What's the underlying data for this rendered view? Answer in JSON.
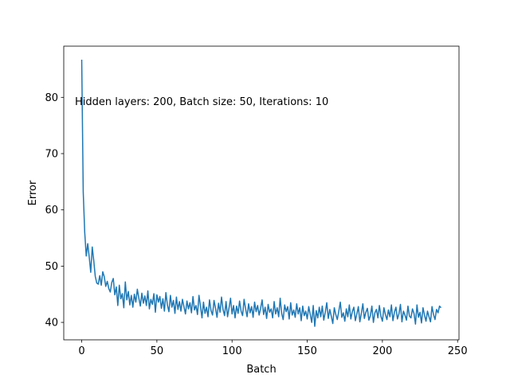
{
  "chart_data": {
    "type": "line",
    "xlabel": "Batch",
    "ylabel": "Error",
    "annotation": "Hidden layers: 200, Batch size: 50, Iterations: 10",
    "xlim": [
      -11.95,
      250.95
    ],
    "xticks": [
      0,
      50,
      100,
      150,
      200,
      250
    ],
    "ylim": [
      36.9,
      89.1
    ],
    "yticks": [
      40,
      50,
      60,
      70,
      80
    ],
    "x": [
      0,
      1,
      2,
      3,
      4,
      5,
      6,
      7,
      8,
      9,
      10,
      11,
      12,
      13,
      14,
      15,
      16,
      17,
      18,
      19,
      20,
      21,
      22,
      23,
      24,
      25,
      26,
      27,
      28,
      29,
      30,
      31,
      32,
      33,
      34,
      35,
      36,
      37,
      38,
      39,
      40,
      41,
      42,
      43,
      44,
      45,
      46,
      47,
      48,
      49,
      50,
      51,
      52,
      53,
      54,
      55,
      56,
      57,
      58,
      59,
      60,
      61,
      62,
      63,
      64,
      65,
      66,
      67,
      68,
      69,
      70,
      71,
      72,
      73,
      74,
      75,
      76,
      77,
      78,
      79,
      80,
      81,
      82,
      83,
      84,
      85,
      86,
      87,
      88,
      89,
      90,
      91,
      92,
      93,
      94,
      95,
      96,
      97,
      98,
      99,
      100,
      101,
      102,
      103,
      104,
      105,
      106,
      107,
      108,
      109,
      110,
      111,
      112,
      113,
      114,
      115,
      116,
      117,
      118,
      119,
      120,
      121,
      122,
      123,
      124,
      125,
      126,
      127,
      128,
      129,
      130,
      131,
      132,
      133,
      134,
      135,
      136,
      137,
      138,
      139,
      140,
      141,
      142,
      143,
      144,
      145,
      146,
      147,
      148,
      149,
      150,
      151,
      152,
      153,
      154,
      155,
      156,
      157,
      158,
      159,
      160,
      161,
      162,
      163,
      164,
      165,
      166,
      167,
      168,
      169,
      170,
      171,
      172,
      173,
      174,
      175,
      176,
      177,
      178,
      179,
      180,
      181,
      182,
      183,
      184,
      185,
      186,
      187,
      188,
      189,
      190,
      191,
      192,
      193,
      194,
      195,
      196,
      197,
      198,
      199,
      200,
      201,
      202,
      203,
      204,
      205,
      206,
      207,
      208,
      209,
      210,
      211,
      212,
      213,
      214,
      215,
      216,
      217,
      218,
      219,
      220,
      221,
      222,
      223,
      224,
      225,
      226,
      227,
      228,
      229,
      230,
      231,
      232,
      233,
      234,
      235,
      236,
      237,
      238,
      239
    ],
    "series": [
      {
        "color": "#1f77b4",
        "values": [
          86.7,
          63.2,
          56.0,
          51.8,
          54.0,
          51.6,
          48.9,
          53.4,
          51.0,
          48.2,
          47.0,
          46.8,
          48.3,
          46.6,
          49.0,
          48.1,
          46.4,
          47.3,
          46.0,
          45.4,
          47.1,
          47.8,
          44.9,
          46.3,
          43.0,
          46.6,
          44.2,
          45.1,
          42.6,
          47.2,
          44.0,
          45.5,
          43.1,
          44.8,
          42.7,
          45.0,
          43.6,
          45.9,
          44.3,
          42.9,
          45.2,
          43.4,
          44.7,
          43.0,
          45.6,
          42.4,
          44.1,
          43.2,
          45.1,
          41.8,
          44.9,
          43.6,
          44.6,
          42.5,
          44.2,
          42.0,
          45.3,
          43.1,
          41.9,
          44.8,
          42.7,
          43.9,
          41.6,
          44.5,
          42.3,
          43.7,
          42.0,
          44.1,
          42.8,
          41.5,
          43.8,
          42.4,
          43.5,
          41.7,
          44.6,
          42.2,
          43.0,
          41.4,
          44.8,
          42.9,
          40.8,
          43.6,
          41.6,
          42.7,
          41.0,
          44.0,
          42.1,
          41.3,
          43.9,
          42.5,
          40.9,
          43.4,
          41.8,
          44.5,
          42.3,
          41.2,
          43.7,
          41.0,
          42.6,
          44.3,
          41.5,
          43.0,
          40.8,
          42.9,
          41.6,
          43.8,
          42.0,
          41.2,
          44.1,
          42.4,
          41.0,
          43.3,
          41.7,
          42.8,
          40.9,
          43.6,
          41.9,
          43.0,
          41.3,
          42.5,
          44.0,
          41.4,
          42.7,
          40.7,
          43.2,
          41.8,
          42.4,
          40.8,
          43.7,
          41.5,
          42.6,
          41.0,
          44.3,
          41.6,
          40.5,
          43.1,
          41.9,
          42.8,
          40.6,
          43.5,
          41.3,
          42.2,
          40.9,
          43.3,
          41.5,
          42.6,
          40.3,
          42.9,
          41.2,
          42.0,
          40.6,
          42.8,
          41.4,
          40.0,
          43.0,
          39.3,
          42.1,
          40.8,
          42.7,
          41.0,
          42.9,
          40.4,
          41.8,
          43.5,
          40.7,
          42.3,
          41.1,
          39.8,
          42.6,
          41.4,
          40.5,
          42.0,
          43.6,
          40.9,
          41.7,
          40.2,
          42.4,
          41.0,
          43.1,
          40.6,
          41.9,
          42.7,
          40.3,
          41.5,
          42.8,
          40.1,
          41.6,
          43.3,
          40.7,
          41.8,
          42.5,
          40.4,
          41.2,
          42.9,
          40.0,
          41.7,
          42.3,
          40.8,
          43.0,
          41.1,
          40.2,
          42.6,
          41.4,
          40.5,
          42.2,
          41.0,
          43.1,
          40.3,
          41.8,
          42.7,
          40.6,
          41.5,
          43.2,
          40.1,
          42.0,
          41.3,
          40.4,
          42.9,
          41.1,
          40.8,
          42.4,
          41.6,
          39.7,
          43.1,
          40.9,
          41.8,
          39.9,
          42.6,
          41.3,
          40.2,
          42.0,
          41.0,
          40.1,
          42.8,
          41.4,
          40.5,
          42.3,
          41.7,
          42.9,
          42.6
        ]
      }
    ]
  }
}
